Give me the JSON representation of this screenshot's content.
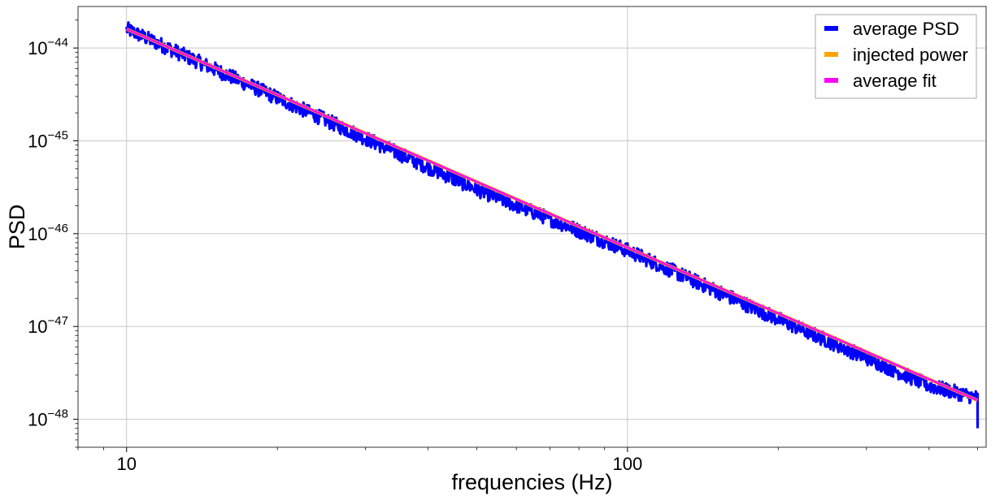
{
  "chart_data": {
    "type": "line",
    "title": "",
    "xlabel": "frequencies (Hz)",
    "ylabel": "PSD",
    "xscale": "log",
    "yscale": "log",
    "xlim": [
      8,
      520
    ],
    "ylim": [
      5e-49,
      2.8e-44
    ],
    "grid": true,
    "legend_position": "top-right",
    "x_ticks": [
      {
        "value": 10,
        "label": "10"
      },
      {
        "value": 100,
        "label": "100"
      }
    ],
    "y_ticks": [
      {
        "value": 1e-44,
        "base": "10",
        "exp": "−44"
      },
      {
        "value": 1e-45,
        "base": "10",
        "exp": "−45"
      },
      {
        "value": 1e-46,
        "base": "10",
        "exp": "−46"
      },
      {
        "value": 1e-47,
        "base": "10",
        "exp": "−47"
      },
      {
        "value": 1e-48,
        "base": "10",
        "exp": "−48"
      }
    ],
    "series": [
      {
        "name": "average PSD",
        "color": "#0000ff",
        "style": "noisy",
        "x": [
          10,
          20,
          50,
          100,
          200,
          300,
          400,
          500
        ],
        "y": [
          1.6e-44,
          2.9e-45,
          3e-46,
          6.6e-47,
          1.2e-47,
          4.6e-48,
          2.3e-48,
          1.7e-48
        ]
      },
      {
        "name": "injected power",
        "color": "#ffa500",
        "style": "line",
        "x": [
          10,
          500
        ],
        "y": [
          1.6e-44,
          1.6e-48
        ]
      },
      {
        "name": "average fit",
        "color": "#ff00ff",
        "style": "line",
        "x": [
          10,
          500
        ],
        "y": [
          1.6e-44,
          1.6e-48
        ]
      }
    ]
  }
}
